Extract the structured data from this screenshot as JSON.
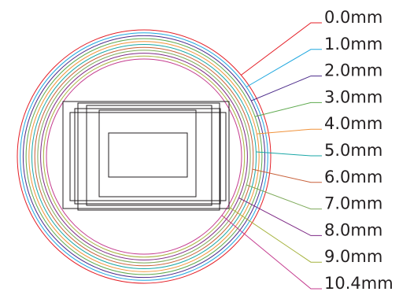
{
  "diagram": {
    "rings": [
      {
        "label": "0.0mm",
        "color": "#e41e26"
      },
      {
        "label": "1.0mm",
        "color": "#1fa7df"
      },
      {
        "label": "2.0mm",
        "color": "#4b2a8a"
      },
      {
        "label": "3.0mm",
        "color": "#5faa4f"
      },
      {
        "label": "4.0mm",
        "color": "#f0923a"
      },
      {
        "label": "5.0mm",
        "color": "#1aa7a7"
      },
      {
        "label": "6.0mm",
        "color": "#c8613a"
      },
      {
        "label": "7.0mm",
        "color": "#7eaa5a"
      },
      {
        "label": "8.0mm",
        "color": "#7e2a86"
      },
      {
        "label": "9.0mm",
        "color": "#a6b33e"
      },
      {
        "label": "10.4mm",
        "color": "#c43a8e"
      }
    ],
    "frame_color": "#231f20",
    "label_color": "#231f20"
  }
}
